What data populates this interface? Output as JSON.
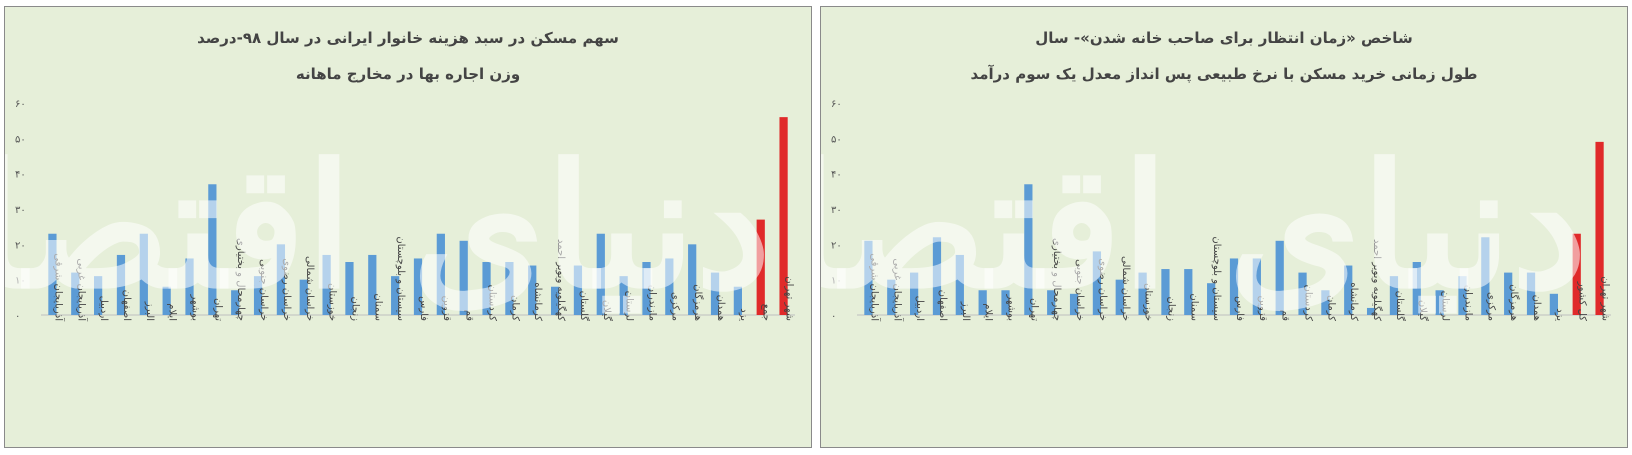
{
  "charts": [
    {
      "title": "سهم مسکن در سبد هزینه خانوار ایرانی در سال ۹۸-درصد",
      "subtitle": "وزن اجاره بها در مخارج ماهانه",
      "watermark": "دنیای اقتصاد",
      "chart_data": {
        "type": "bar",
        "ylim": [
          0,
          60
        ],
        "yticks": [
          0,
          10,
          20,
          30,
          40,
          50,
          60
        ],
        "ytick_labels": [
          "۰",
          "۱۰",
          "۲۰",
          "۳۰",
          "۴۰",
          "۵۰",
          "۶۰"
        ],
        "grid": false,
        "categories": [
          "آذربایجان شرقی",
          "آذربایجان غربی",
          "اردبیل",
          "اصفهان",
          "البرز",
          "ایلام",
          "بوشهر",
          "تهران",
          "چهارمحال و بختیاری",
          "خراسان جنوبی",
          "خراسان رضوی",
          "خراسان شمالی",
          "خوزستان",
          "زنجان",
          "سمنان",
          "سیستان و بلوچستان",
          "فارس",
          "قزوین",
          "قم",
          "کردستان",
          "کرمان",
          "کرمانشاه",
          "کهگیلویه وبویر احمد",
          "گلستان",
          "گیلان",
          "لرستان",
          "مازندران",
          "مرکزی",
          "هرمزگان",
          "همدان",
          "یزد",
          "جمع",
          "شهر تهران"
        ],
        "values": [
          23,
          12,
          11,
          17,
          23,
          8,
          16,
          37,
          7,
          11,
          20,
          10,
          17,
          15,
          17,
          11,
          16,
          23,
          21,
          15,
          15,
          14,
          8,
          14,
          23,
          11,
          15,
          16,
          20,
          12,
          8,
          27,
          56
        ],
        "colors": {
          "regular": "#5b9bd5",
          "highlight": "#e02a2a"
        },
        "highlight_categories": [
          "جمع",
          "شهر تهران"
        ]
      }
    },
    {
      "title": "شاخص «زمان انتظار برای صاحب خانه شدن»- سال",
      "subtitle": "طول زمانی خرید مسکن با نرخ طبیعی پس انداز معدل یک سوم درآمد",
      "watermark": "دنیای اقتصاد",
      "chart_data": {
        "type": "bar",
        "ylim": [
          0,
          60
        ],
        "yticks": [
          0,
          10,
          20,
          30,
          40,
          50,
          60
        ],
        "ytick_labels": [
          "۰",
          "۱۰",
          "۲۰",
          "۳۰",
          "۴۰",
          "۵۰",
          "۶۰"
        ],
        "grid": false,
        "categories": [
          "آذربایجان شرقی",
          "آذربایجان غربی",
          "اردبیل",
          "اصفهان",
          "البرز",
          "ایلام",
          "بوشهر",
          "تهران",
          "چهارمحال و بختیاری",
          "خراسان جنوبی",
          "خراسان رضوی",
          "خراسان شمالی",
          "خوزستان",
          "زنجان",
          "سمنان",
          "سیستان و بلوچستان",
          "فارس",
          "قزوین",
          "قم",
          "کردستان",
          "کرمان",
          "کرمانشاه",
          "کهگیلویه وبویر احمد",
          "گلستان",
          "گیلان",
          "لرستان",
          "مازندران",
          "مرکزی",
          "هرمزگان",
          "همدان",
          "یزد",
          "کل کشور",
          "شهر تهران"
        ],
        "values": [
          21,
          10,
          12,
          22,
          17,
          7,
          7,
          37,
          7,
          6,
          18,
          10,
          12,
          13,
          13,
          9,
          16,
          16,
          21,
          12,
          7,
          14,
          2,
          11,
          15,
          7,
          11,
          22,
          12,
          12,
          6,
          23,
          49
        ],
        "colors": {
          "regular": "#5b9bd5",
          "highlight": "#e02a2a"
        },
        "highlight_categories": [
          "کل کشور",
          "شهر تهران"
        ]
      }
    }
  ]
}
